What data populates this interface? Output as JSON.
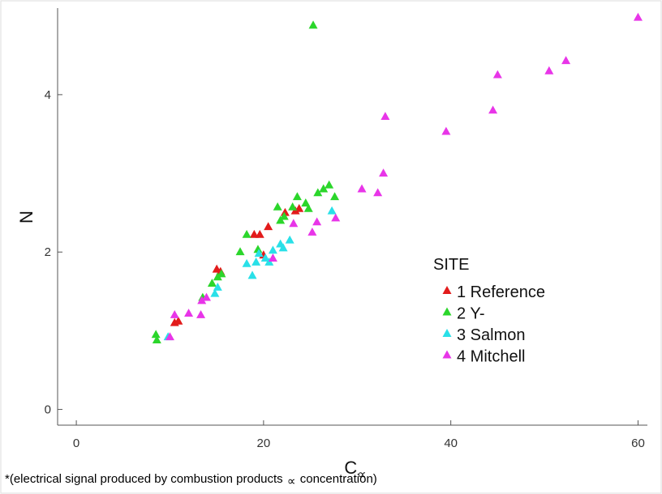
{
  "chart_data": {
    "type": "scatter",
    "xlabel": "C",
    "xlabel_sub": "∝",
    "ylabel": "N",
    "xlim": [
      -2,
      61
    ],
    "ylim": [
      -0.2,
      5.1
    ],
    "xticks": [
      0,
      20,
      40,
      60
    ],
    "yticks": [
      0,
      2,
      4
    ],
    "grid": false,
    "legend_title": "SITE",
    "legend_position": "center-right",
    "marker": "triangle",
    "series": [
      {
        "name": "1 Reference",
        "color": "#e21b1b",
        "points": [
          [
            10.5,
            1.1
          ],
          [
            10.9,
            1.12
          ],
          [
            15.0,
            1.78
          ],
          [
            15.4,
            1.75
          ],
          [
            19.0,
            2.22
          ],
          [
            19.6,
            2.22
          ],
          [
            20.0,
            1.96
          ],
          [
            20.5,
            2.32
          ],
          [
            22.3,
            2.5
          ],
          [
            23.4,
            2.52
          ],
          [
            23.8,
            2.55
          ]
        ]
      },
      {
        "name": "2 Y-",
        "color": "#2bd62b",
        "points": [
          [
            8.5,
            0.95
          ],
          [
            8.6,
            0.88
          ],
          [
            13.5,
            1.42
          ],
          [
            14.5,
            1.6
          ],
          [
            15.1,
            1.68
          ],
          [
            15.5,
            1.72
          ],
          [
            17.5,
            2.0
          ],
          [
            18.2,
            2.22
          ],
          [
            19.4,
            2.03
          ],
          [
            21.5,
            2.57
          ],
          [
            21.8,
            2.4
          ],
          [
            22.2,
            2.45
          ],
          [
            23.1,
            2.57
          ],
          [
            23.6,
            2.7
          ],
          [
            24.5,
            2.62
          ],
          [
            24.8,
            2.55
          ],
          [
            25.3,
            4.88
          ],
          [
            25.8,
            2.75
          ],
          [
            26.4,
            2.8
          ],
          [
            27.0,
            2.85
          ],
          [
            27.6,
            2.7
          ]
        ]
      },
      {
        "name": "3 Salmon",
        "color": "#29e0e8",
        "points": [
          [
            9.8,
            0.92
          ],
          [
            14.8,
            1.47
          ],
          [
            15.1,
            1.55
          ],
          [
            18.2,
            1.85
          ],
          [
            18.8,
            1.7
          ],
          [
            19.2,
            1.87
          ],
          [
            19.5,
            1.98
          ],
          [
            20.2,
            1.92
          ],
          [
            20.6,
            1.87
          ],
          [
            21.0,
            2.02
          ],
          [
            21.8,
            2.1
          ],
          [
            22.1,
            2.05
          ],
          [
            22.8,
            2.15
          ],
          [
            27.3,
            2.52
          ]
        ]
      },
      {
        "name": "4 Mitchell",
        "color": "#e835e8",
        "points": [
          [
            10.0,
            0.92
          ],
          [
            10.5,
            1.2
          ],
          [
            12.0,
            1.22
          ],
          [
            13.3,
            1.2
          ],
          [
            13.4,
            1.38
          ],
          [
            13.9,
            1.42
          ],
          [
            21.0,
            1.92
          ],
          [
            23.2,
            2.36
          ],
          [
            25.2,
            2.25
          ],
          [
            25.7,
            2.38
          ],
          [
            27.7,
            2.43
          ],
          [
            30.5,
            2.8
          ],
          [
            32.2,
            2.75
          ],
          [
            32.8,
            3.0
          ],
          [
            33.0,
            3.72
          ],
          [
            39.5,
            3.53
          ],
          [
            44.5,
            3.8
          ],
          [
            45.0,
            4.25
          ],
          [
            50.5,
            4.3
          ],
          [
            52.3,
            4.43
          ],
          [
            60.0,
            4.98
          ]
        ]
      }
    ]
  },
  "footnote": {
    "before": "*(electrical signal produced by combustion products",
    "symbol": "∝",
    "after": "concentration)"
  }
}
